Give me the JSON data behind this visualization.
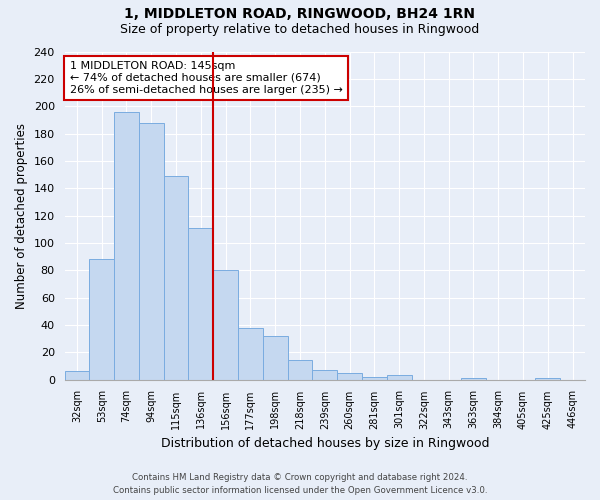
{
  "title": "1, MIDDLETON ROAD, RINGWOOD, BH24 1RN",
  "subtitle": "Size of property relative to detached houses in Ringwood",
  "xlabel": "Distribution of detached houses by size in Ringwood",
  "ylabel": "Number of detached properties",
  "bin_labels": [
    "32sqm",
    "53sqm",
    "74sqm",
    "94sqm",
    "115sqm",
    "136sqm",
    "156sqm",
    "177sqm",
    "198sqm",
    "218sqm",
    "239sqm",
    "260sqm",
    "281sqm",
    "301sqm",
    "322sqm",
    "343sqm",
    "363sqm",
    "384sqm",
    "405sqm",
    "425sqm",
    "446sqm"
  ],
  "bar_heights": [
    6,
    88,
    196,
    188,
    149,
    111,
    80,
    38,
    32,
    14,
    7,
    5,
    2,
    3,
    0,
    0,
    1,
    0,
    0,
    1,
    0
  ],
  "bar_color": "#c5d8f0",
  "bar_edge_color": "#7aace0",
  "vline_color": "#cc0000",
  "annotation_line1": "1 MIDDLETON ROAD: 145sqm",
  "annotation_line2": "← 74% of detached houses are smaller (674)",
  "annotation_line3": "26% of semi-detached houses are larger (235) →",
  "annotation_box_color": "#ffffff",
  "annotation_box_edge": "#cc0000",
  "ylim": [
    0,
    240
  ],
  "yticks": [
    0,
    20,
    40,
    60,
    80,
    100,
    120,
    140,
    160,
    180,
    200,
    220,
    240
  ],
  "footer_line1": "Contains HM Land Registry data © Crown copyright and database right 2024.",
  "footer_line2": "Contains public sector information licensed under the Open Government Licence v3.0.",
  "bg_color": "#e8eef8",
  "plot_bg_color": "#e8eef8",
  "grid_color": "#ffffff",
  "title_fontsize": 10,
  "subtitle_fontsize": 9
}
